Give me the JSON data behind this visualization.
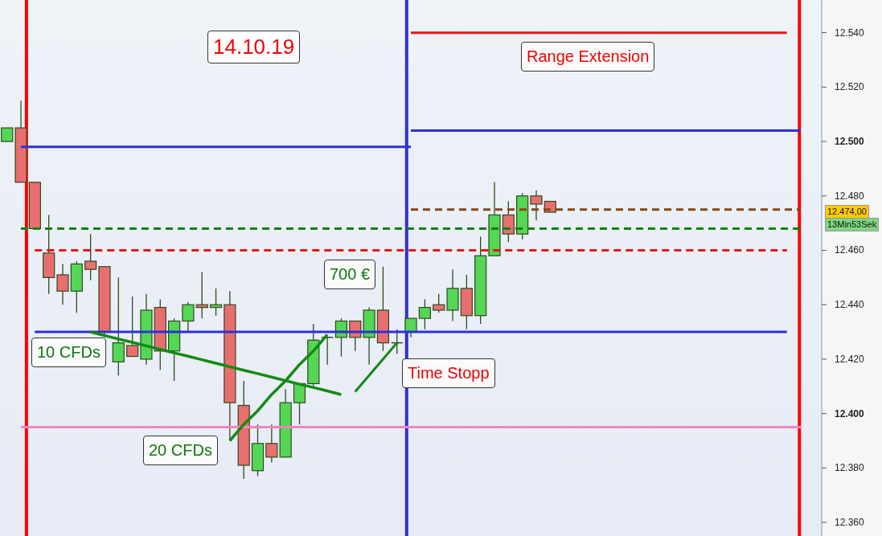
{
  "chart_data": {
    "type": "candlestick",
    "title": "14.10.19",
    "categories": [
      null,
      null,
      null,
      null,
      null,
      null,
      null,
      null,
      null,
      null,
      null,
      null,
      null,
      null,
      null,
      null,
      null,
      null,
      null,
      null,
      null,
      null,
      null,
      null,
      null,
      null,
      null,
      null,
      null,
      null,
      null,
      null,
      null,
      null,
      null,
      null,
      null,
      null,
      null,
      null,
      null,
      null,
      null,
      null,
      null,
      null,
      null,
      null,
      null,
      null,
      null,
      null,
      null,
      null,
      null,
      null,
      null,
      null,
      null
    ],
    "ohlc": [
      [
        12500,
        12505,
        12500,
        12505
      ],
      [
        12505,
        12515,
        12485,
        12485
      ],
      [
        12485,
        12485,
        12468,
        12468
      ],
      [
        12459,
        12473,
        12444,
        12450
      ],
      [
        12451,
        12455,
        12440,
        12445
      ],
      [
        12445,
        12456,
        12437,
        12455
      ],
      [
        12456,
        12466,
        12449,
        12453
      ],
      [
        12454,
        12454,
        12428,
        12430
      ],
      [
        12419,
        12450,
        12414,
        12426
      ],
      [
        12425,
        12443,
        12421,
        12421
      ],
      [
        12420,
        12444,
        12418,
        12438
      ],
      [
        12439,
        12442,
        12416,
        12423
      ],
      [
        12423,
        12435,
        12412,
        12434
      ],
      [
        12434,
        12441,
        12430,
        12440
      ],
      [
        12440,
        12452,
        12435,
        12439
      ],
      [
        12439,
        12446,
        12436,
        12440
      ],
      [
        12440,
        12445,
        12390,
        12404
      ],
      [
        12403,
        12412,
        12376,
        12381
      ],
      [
        12379,
        12396,
        12377,
        12389
      ],
      [
        12389,
        12396,
        12382,
        12384
      ],
      [
        12384,
        12409,
        12384,
        12404
      ],
      [
        12404,
        12411,
        12396,
        12411
      ],
      [
        12411,
        12433,
        12410,
        12427
      ],
      [
        12428,
        12428,
        12418,
        12428
      ],
      [
        12428,
        12435,
        12421,
        12434
      ],
      [
        12434,
        12434,
        12423,
        12428
      ],
      [
        12428,
        12439,
        12418,
        12438
      ],
      [
        12438,
        12454,
        12423,
        12426
      ],
      [
        12426,
        12431,
        12422,
        12426
      ],
      [
        12430,
        12435,
        12428,
        12435
      ],
      [
        12435,
        12442,
        12431,
        12439
      ],
      [
        12440,
        12444,
        12437,
        12438
      ],
      [
        12438,
        12453,
        12434,
        12446
      ],
      [
        12446,
        12451,
        12431,
        12436
      ],
      [
        12436,
        12465,
        12433,
        12458
      ],
      [
        12458,
        12485,
        12458,
        12473
      ],
      [
        12473,
        12478,
        12463,
        12466
      ],
      [
        12466,
        12481,
        12464,
        12480
      ],
      [
        12480,
        12482,
        12471,
        12477
      ],
      [
        12478,
        12478,
        12474,
        12474
      ],
      null,
      null,
      null,
      null,
      null,
      null,
      null,
      null,
      null,
      null,
      null,
      null,
      null,
      null,
      null,
      null,
      null,
      null,
      null
    ],
    "series": [
      {
        "type": "line",
        "color": "#2f2fd8",
        "line_style": "solid",
        "values": [
          null,
          12498,
          12498,
          12498,
          12498,
          12498,
          12498,
          12498,
          12498,
          12498,
          12498,
          12498,
          12498,
          12498,
          12498,
          12498,
          12498,
          12498,
          12498,
          12498,
          12498,
          12498,
          12498,
          12498,
          12498,
          12498,
          12498,
          12498,
          12498,
          12498,
          null,
          null,
          null,
          null,
          null,
          null,
          null,
          null,
          null,
          null,
          null,
          null,
          null,
          null,
          null,
          null,
          null,
          null,
          null,
          null,
          null,
          null,
          null,
          null,
          null,
          null,
          null,
          null,
          null
        ]
      },
      {
        "type": "line",
        "color": "#2f2fd8",
        "line_style": "solid",
        "values": [
          null,
          null,
          null,
          null,
          null,
          null,
          null,
          null,
          null,
          null,
          null,
          null,
          null,
          null,
          null,
          null,
          null,
          null,
          null,
          null,
          null,
          null,
          null,
          null,
          null,
          null,
          null,
          null,
          null,
          12504,
          12504,
          12504,
          12504,
          12504,
          12504,
          12504,
          12504,
          12504,
          12504,
          12504,
          12504,
          12504,
          12504,
          12504,
          12504,
          12504,
          12504,
          12504,
          12504,
          12504,
          12504,
          12504,
          12504,
          12504,
          12504,
          12504,
          12504,
          12504,
          null
        ]
      },
      {
        "type": "line",
        "color": "#ee1111",
        "line_style": "solid",
        "values": [
          null,
          null,
          null,
          null,
          null,
          null,
          null,
          null,
          null,
          null,
          null,
          null,
          null,
          null,
          null,
          null,
          null,
          null,
          null,
          null,
          null,
          null,
          null,
          null,
          null,
          null,
          null,
          null,
          null,
          12540,
          12540,
          12540,
          12540,
          12540,
          12540,
          12540,
          12540,
          12540,
          12540,
          12540,
          12540,
          12540,
          12540,
          12540,
          12540,
          12540,
          12540,
          12540,
          12540,
          12540,
          12540,
          12540,
          12540,
          12540,
          12540,
          12540,
          12540,
          null,
          null
        ]
      },
      {
        "type": "line",
        "color": "#2f2fd8",
        "line_style": "solid",
        "values": [
          null,
          null,
          12430,
          12430,
          12430,
          12430,
          12430,
          12430,
          12430,
          12430,
          12430,
          12430,
          12430,
          12430,
          12430,
          12430,
          12430,
          12430,
          12430,
          12430,
          12430,
          12430,
          12430,
          12430,
          12430,
          12430,
          12430,
          12430,
          12430,
          12430,
          12430,
          12430,
          12430,
          12430,
          12430,
          12430,
          12430,
          12430,
          12430,
          12430,
          12430,
          12430,
          12430,
          12430,
          12430,
          12430,
          12430,
          12430,
          12430,
          12430,
          12430,
          12430,
          12430,
          12430,
          12430,
          12430,
          12430,
          null,
          null
        ]
      },
      {
        "type": "line",
        "color": "#f384c0",
        "line_style": "solid",
        "values": [
          null,
          12395,
          12395,
          12395,
          12395,
          12395,
          12395,
          12395,
          12395,
          12395,
          12395,
          12395,
          12395,
          12395,
          12395,
          12395,
          12395,
          12395,
          12395,
          12395,
          12395,
          12395,
          12395,
          12395,
          12395,
          12395,
          12395,
          12395,
          12395,
          12395,
          12395,
          12395,
          12395,
          12395,
          12395,
          12395,
          12395,
          12395,
          12395,
          12395,
          12395,
          12395,
          12395,
          12395,
          12395,
          12395,
          12395,
          12395,
          12395,
          12395,
          12395,
          12395,
          12395,
          12395,
          12395,
          12395,
          12395,
          12395,
          null
        ]
      },
      {
        "type": "line",
        "color": "#118011",
        "line_style": "dashed",
        "values": [
          null,
          12468,
          12468,
          12468,
          12468,
          12468,
          12468,
          12468,
          12468,
          12468,
          12468,
          12468,
          12468,
          12468,
          12468,
          12468,
          12468,
          12468,
          12468,
          12468,
          12468,
          12468,
          12468,
          12468,
          12468,
          12468,
          12468,
          12468,
          12468,
          12468,
          12468,
          12468,
          12468,
          12468,
          12468,
          12468,
          12468,
          12468,
          12468,
          12468,
          12468,
          12468,
          12468,
          12468,
          12468,
          12468,
          12468,
          12468,
          12468,
          12468,
          12468,
          12468,
          12468,
          12468,
          12468,
          12468,
          12468,
          12468,
          null
        ]
      },
      {
        "type": "line",
        "color": "#ee1111",
        "line_style": "dashed",
        "values": [
          null,
          null,
          12460,
          12460,
          12460,
          12460,
          12460,
          12460,
          12460,
          12460,
          12460,
          12460,
          12460,
          12460,
          12460,
          12460,
          12460,
          12460,
          12460,
          12460,
          12460,
          12460,
          12460,
          12460,
          12460,
          12460,
          12460,
          12460,
          12460,
          12460,
          12460,
          12460,
          12460,
          12460,
          12460,
          12460,
          12460,
          12460,
          12460,
          12460,
          12460,
          12460,
          12460,
          12460,
          12460,
          12460,
          12460,
          12460,
          12460,
          12460,
          12460,
          12460,
          12460,
          12460,
          12460,
          12460,
          12460,
          null,
          null
        ]
      },
      {
        "type": "line",
        "color": "#8b4513",
        "line_style": "dashed",
        "values": [
          null,
          null,
          null,
          null,
          null,
          null,
          null,
          null,
          null,
          null,
          null,
          null,
          null,
          null,
          null,
          null,
          null,
          null,
          null,
          null,
          null,
          null,
          null,
          null,
          null,
          null,
          null,
          null,
          null,
          12475,
          12475,
          12475,
          12475,
          12475,
          12475,
          12475,
          12475,
          12475,
          12475,
          12475,
          12475,
          12475,
          12475,
          12475,
          12475,
          12475,
          12475,
          12475,
          12475,
          12475,
          12475,
          12475,
          12475,
          12475,
          12475,
          12475,
          12475,
          12475,
          null
        ]
      },
      {
        "type": "line",
        "color": "#138a13",
        "line_style": "solid",
        "values": [
          null,
          null,
          null,
          null,
          null,
          null,
          12430,
          12428.7,
          12427.4,
          12426.2,
          12424.9,
          12423.6,
          12422.3,
          12421.1,
          12419.8,
          12418.5,
          12417.2,
          12415.9,
          12414.7,
          12413.4,
          12412.1,
          12410.8,
          12409.6,
          12408.3,
          12407,
          null,
          null,
          null,
          null,
          null,
          null,
          null,
          null,
          null,
          null,
          null,
          null,
          null,
          null,
          null,
          null,
          null,
          null,
          null,
          null,
          null,
          null,
          null,
          null,
          null,
          null,
          null,
          null,
          null,
          null,
          null,
          null,
          null,
          null
        ]
      },
      {
        "type": "line",
        "color": "#138a13",
        "line_style": "solid",
        "values": [
          null,
          null,
          null,
          null,
          null,
          null,
          null,
          null,
          null,
          null,
          null,
          null,
          null,
          null,
          null,
          null,
          12390,
          12396,
          12401,
          12407,
          12412,
          12418,
          12423,
          12429,
          null,
          null,
          null,
          null,
          null,
          null,
          null,
          null,
          null,
          null,
          null,
          null,
          null,
          null,
          null,
          null,
          null,
          null,
          null,
          null,
          null,
          null,
          null,
          null,
          null,
          null,
          null,
          null,
          null,
          null,
          null,
          null,
          null,
          null,
          null
        ]
      },
      {
        "type": "line",
        "color": "#138a13",
        "line_style": "solid",
        "values": [
          null,
          null,
          null,
          null,
          null,
          null,
          null,
          null,
          null,
          null,
          null,
          null,
          null,
          null,
          null,
          null,
          null,
          null,
          null,
          null,
          null,
          null,
          null,
          null,
          null,
          12408,
          12414,
          12420,
          12426,
          null,
          null,
          null,
          null,
          null,
          null,
          null,
          null,
          null,
          null,
          null,
          null,
          null,
          null,
          null,
          null,
          null,
          null,
          null,
          null,
          null,
          null,
          null,
          null,
          null,
          null,
          null,
          null,
          null,
          null
        ]
      }
    ],
    "ylim": [
      12355,
      12552
    ],
    "yticks": [
      {
        "value": 12360,
        "label": "12.360"
      },
      {
        "value": 12380,
        "label": "12.380"
      },
      {
        "value": 12400,
        "label": "12.400"
      },
      {
        "value": 12420,
        "label": "12.420"
      },
      {
        "value": 12440,
        "label": "12.440"
      },
      {
        "value": 12460,
        "label": "12.460"
      },
      {
        "value": 12480,
        "label": "12.480"
      },
      {
        "value": 12500,
        "label": "12.500"
      },
      {
        "value": 12520,
        "label": "12.520"
      },
      {
        "value": 12540,
        "label": "12.540"
      }
    ],
    "tick_labels": "y",
    "annotations": [
      "Range Extension",
      "10 CFDs",
      "20 CFDs",
      "700 €",
      "Time Stopp",
      "12.474,00",
      "13Min53Sek"
    ]
  }
}
